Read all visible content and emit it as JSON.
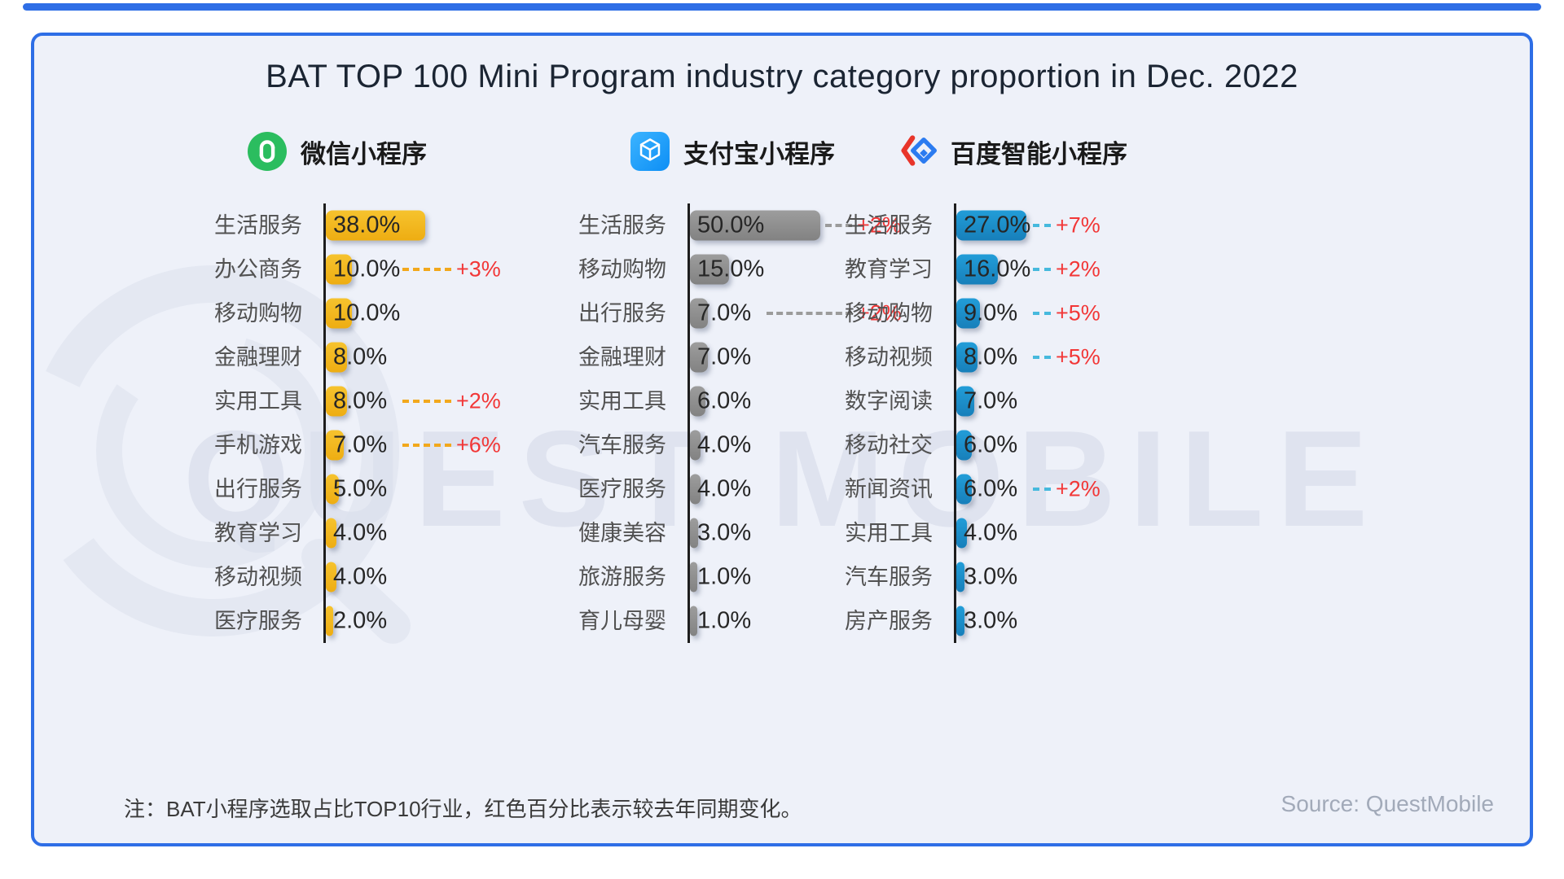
{
  "page": {
    "title": "BAT TOP 100 Mini Program industry category proportion in Dec. 2022",
    "note": "注：BAT小程序选取占比TOP10行业，红色百分比表示较去年同期变化。",
    "source": "Source: QuestMobile",
    "watermark": "QUEST MOBILE",
    "border_color": "#2e6ee6",
    "background_color": "#eef1f9",
    "change_color": "#f23737",
    "axis_color": "#1d1d1d"
  },
  "chart_data": [
    {
      "type": "bar",
      "orientation": "horizontal",
      "unit": "%",
      "title": "微信小程序",
      "icon": "wechat-miniprogram-icon",
      "icon_color": "#2bbd5f",
      "bar_color": "#eead12",
      "bar_color_light": "#f6c32e",
      "dash_color": "#f2a81c",
      "categories": [
        "生活服务",
        "办公商务",
        "移动购物",
        "金融理财",
        "实用工具",
        "手机游戏",
        "出行服务",
        "教育学习",
        "移动视频",
        "医疗服务"
      ],
      "values": [
        38.0,
        10.0,
        10.0,
        8.0,
        8.0,
        7.0,
        5.0,
        4.0,
        4.0,
        2.0
      ],
      "changes": [
        null,
        "+3%",
        null,
        null,
        "+2%",
        "+6%",
        null,
        null,
        null,
        null
      ]
    },
    {
      "type": "bar",
      "orientation": "horizontal",
      "unit": "%",
      "title": "支付宝小程序",
      "icon": "alipay-miniprogram-icon",
      "icon_color": "#1da2f2",
      "bar_color": "#828282",
      "bar_color_light": "#9d9d9d",
      "dash_color": "#9b9b9b",
      "categories": [
        "生活服务",
        "移动购物",
        "出行服务",
        "金融理财",
        "实用工具",
        "汽车服务",
        "医疗服务",
        "健康美容",
        "旅游服务",
        "育儿母婴"
      ],
      "values": [
        50.0,
        15.0,
        7.0,
        7.0,
        6.0,
        4.0,
        4.0,
        3.0,
        1.0,
        1.0
      ],
      "changes": [
        "+2%",
        null,
        "+2%",
        null,
        null,
        null,
        null,
        null,
        null,
        null
      ]
    },
    {
      "type": "bar",
      "orientation": "horizontal",
      "unit": "%",
      "title": "百度智能小程序",
      "icon": "baidu-smartprogram-icon",
      "icon_color": "#2b7bf0",
      "bar_color": "#177fba",
      "bar_color_light": "#229dd8",
      "dash_color": "#46b9dd",
      "categories": [
        "生活服务",
        "教育学习",
        "移动购物",
        "移动视频",
        "数字阅读",
        "移动社交",
        "新闻资讯",
        "实用工具",
        "汽车服务",
        "房产服务"
      ],
      "values": [
        27.0,
        16.0,
        9.0,
        8.0,
        7.0,
        6.0,
        6.0,
        4.0,
        3.0,
        3.0
      ],
      "changes": [
        "+7%",
        "+2%",
        "+5%",
        "+5%",
        null,
        null,
        "+2%",
        null,
        null,
        null
      ]
    }
  ]
}
